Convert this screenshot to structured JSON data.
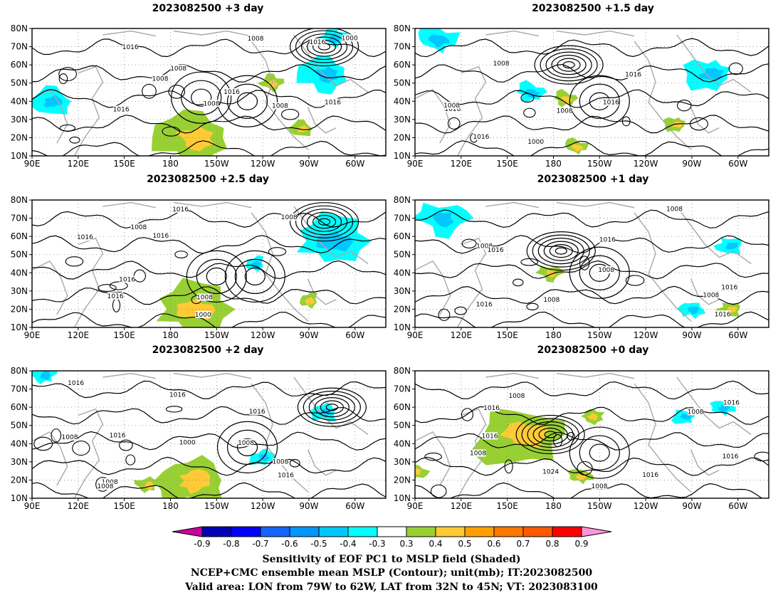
{
  "chart_data": [
    {
      "type": "map",
      "title": "2023082500 +3 day",
      "lon_ticks": [
        "90E",
        "120E",
        "150E",
        "180",
        "150W",
        "120W",
        "90W",
        "60W"
      ],
      "lat_ticks": [
        "80N",
        "70N",
        "60N",
        "50N",
        "40N",
        "30N",
        "20N",
        "10N"
      ],
      "contour_labels": [
        "1008",
        "1016",
        "1008",
        "1016",
        "1000",
        "1016",
        "1008",
        "1016",
        "1008",
        "1016",
        "1008"
      ],
      "low_center": {
        "lon": "80W",
        "lat": 70,
        "mslp": 1000
      },
      "high_centers": [
        {
          "lon": "130W",
          "lat": 40
        },
        {
          "lon": "160W",
          "lat": 42
        }
      ],
      "positive_regions": [
        {
          "lon": "180-150W",
          "lat": "10-30N"
        },
        {
          "lon": "95W",
          "lat": "20-30N"
        },
        {
          "lon": "115W",
          "lat": "50N"
        }
      ],
      "negative_regions": [
        {
          "lon": "90W-70W",
          "lat": "50-60N"
        },
        {
          "lon": "95E-110E",
          "lat": "35-45N"
        },
        {
          "lon": "80W-70W",
          "lat": "75N"
        }
      ]
    },
    {
      "type": "map",
      "title": "2023082500 +1.5 day",
      "lon_ticks": [
        "90E",
        "120E",
        "150E",
        "180",
        "150W",
        "120W",
        "90W",
        "60W"
      ],
      "lat_ticks": [
        "80N",
        "70N",
        "60N",
        "50N",
        "40N",
        "30N",
        "20N",
        "10N"
      ],
      "contour_labels": [
        "1016",
        "1016",
        "1000",
        "1008",
        "1008",
        "1016",
        "1008",
        "1016"
      ],
      "low_center": {
        "lon": "170W",
        "lat": 60
      },
      "high_centers": [
        {
          "lon": "150W",
          "lat": 40
        }
      ],
      "positive_regions": [
        {
          "lon": "165W",
          "lat": "10-20N"
        },
        {
          "lon": "170W-175W",
          "lat": "38-45N"
        },
        {
          "lon": "100W",
          "lat": "25-30N"
        }
      ],
      "negative_regions": [
        {
          "lon": "90E-120E",
          "lat": "70-78N"
        },
        {
          "lon": "160E-170E",
          "lat": "40-50N"
        },
        {
          "lon": "90W-65W",
          "lat": "50-60N"
        }
      ]
    },
    {
      "type": "map",
      "title": "2023082500 +2.5 day",
      "lon_ticks": [
        "90E",
        "120E",
        "150E",
        "180",
        "150W",
        "120W",
        "90W",
        "60W"
      ],
      "lat_ticks": [
        "80N",
        "70N",
        "60N",
        "50N",
        "40N",
        "30N",
        "20N",
        "10N"
      ],
      "contour_labels": [
        "1008",
        "1008",
        "1016",
        "1016",
        "1016",
        "1008",
        "1000",
        "1016",
        "1016"
      ],
      "low_center": {
        "lon": "80W",
        "lat": 68,
        "mslp": 1000
      },
      "high_centers": [
        {
          "lon": "125W",
          "lat": 38
        },
        {
          "lon": "150W",
          "lat": 38
        }
      ],
      "positive_regions": [
        {
          "lon": "180-150W",
          "lat": "10-30N"
        },
        {
          "lon": "90W",
          "lat": "20-30N"
        }
      ],
      "negative_regions": [
        {
          "lon": "90W-60W",
          "lat": "50-65N"
        },
        {
          "lon": "125W",
          "lat": "45N"
        }
      ]
    },
    {
      "type": "map",
      "title": "2023082500 +1 day",
      "lon_ticks": [
        "90E",
        "120E",
        "150E",
        "180",
        "150W",
        "120W",
        "90W",
        "60W"
      ],
      "lat_ticks": [
        "80N",
        "70N",
        "60N",
        "50N",
        "40N",
        "30N",
        "20N",
        "10N"
      ],
      "contour_labels": [
        "1008",
        "1016",
        "1008",
        "1016",
        "1016",
        "1016",
        "1016",
        "1008",
        "1008",
        "1008"
      ],
      "low_center": {
        "lon": "175W",
        "lat": 52
      },
      "high_centers": [
        {
          "lon": "150W",
          "lat": 40
        }
      ],
      "positive_regions": [
        {
          "lon": "180-175E",
          "lat": "35-45N"
        },
        {
          "lon": "65W",
          "lat": "20N"
        }
      ],
      "negative_regions": [
        {
          "lon": "95E-120E",
          "lat": "65-75N"
        },
        {
          "lon": "70W-60W",
          "lat": "55N"
        },
        {
          "lon": "90W",
          "lat": "20N"
        }
      ]
    },
    {
      "type": "map",
      "title": "2023082500 +2 day",
      "lon_ticks": [
        "90E",
        "120E",
        "150E",
        "180",
        "150W",
        "120W",
        "90W",
        "60W"
      ],
      "lat_ticks": [
        "80N",
        "70N",
        "60N",
        "50N",
        "40N",
        "30N",
        "20N",
        "10N"
      ],
      "contour_labels": [
        "1008",
        "1016",
        "1016",
        "1008",
        "1016",
        "1016",
        "1008",
        "1016",
        "1008",
        "1008",
        "1000"
      ],
      "low_center": {
        "lon": "75W",
        "lat": 60,
        "mslp": 1000
      },
      "high_centers": [
        {
          "lon": "130W",
          "lat": 38
        }
      ],
      "positive_regions": [
        {
          "lon": "180-150W",
          "lat": "10-30N"
        },
        {
          "lon": "165E",
          "lat": "15-20N"
        }
      ],
      "negative_regions": [
        {
          "lon": "90W-70W",
          "lat": "55-60N"
        },
        {
          "lon": "90E-105E",
          "lat": "78N"
        },
        {
          "lon": "120W",
          "lat": "25-40N"
        }
      ]
    },
    {
      "type": "map",
      "title": "2023082500 +0 day",
      "lon_ticks": [
        "90E",
        "120E",
        "150E",
        "180",
        "150W",
        "120W",
        "90W",
        "60W"
      ],
      "lat_ticks": [
        "80N",
        "70N",
        "60N",
        "50N",
        "40N",
        "30N",
        "20N",
        "10N"
      ],
      "contour_labels": [
        "1016",
        "1008",
        "1016",
        "1016",
        "1008",
        "1024",
        "1016",
        "1016",
        "1008",
        "1008"
      ],
      "low_center": {
        "lon": "178E",
        "lat": 45
      },
      "high_centers": [
        {
          "lon": "150W",
          "lat": 35,
          "mslp": 1024
        }
      ],
      "positive_regions": [
        {
          "lon": "140E-180",
          "lat": "35-55N"
        },
        {
          "lon": "165W-160W",
          "lat": "20-25N"
        },
        {
          "lon": "90E",
          "lat": "20-30N"
        },
        {
          "lon": "155W",
          "lat": "55N"
        }
      ],
      "negative_regions": [
        {
          "lon": "95W",
          "lat": "55N"
        },
        {
          "lon": "70W",
          "lat": "60N"
        }
      ]
    }
  ],
  "colorbar": {
    "ticks": [
      "-0.9",
      "-0.8",
      "-0.7",
      "-0.6",
      "-0.5",
      "-0.4",
      "-0.3",
      "0.3",
      "0.4",
      "0.5",
      "0.6",
      "0.7",
      "0.8",
      "0.9"
    ],
    "colors": [
      "#c8009c",
      "#0000b4",
      "#0000ff",
      "#1464ff",
      "#0096ff",
      "#00c8ff",
      "#00ffff",
      "#ffffff",
      "#98d033",
      "#ffca36",
      "#ffa000",
      "#ff7800",
      "#ff5a00",
      "#ff0000",
      "#ff96d8"
    ]
  },
  "footer": {
    "line1": "Sensitivity of EOF PC1 to MSLP field (Shaded)",
    "line2": "NCEP+CMC ensemble mean MSLP (Contour); unit(mb); IT:2023082500",
    "line3": "Valid area: LON from 79W to 62W, LAT from 32N to 45N; VT: 2023083100"
  },
  "colors": {
    "positive": "#98d033",
    "positive_strong": "#ffca36",
    "positive_stronger": "#ffa000",
    "negative": "#00ffff",
    "negative_strong": "#00c8ff",
    "contour": "#000000",
    "coast": "#a8a8a8"
  }
}
